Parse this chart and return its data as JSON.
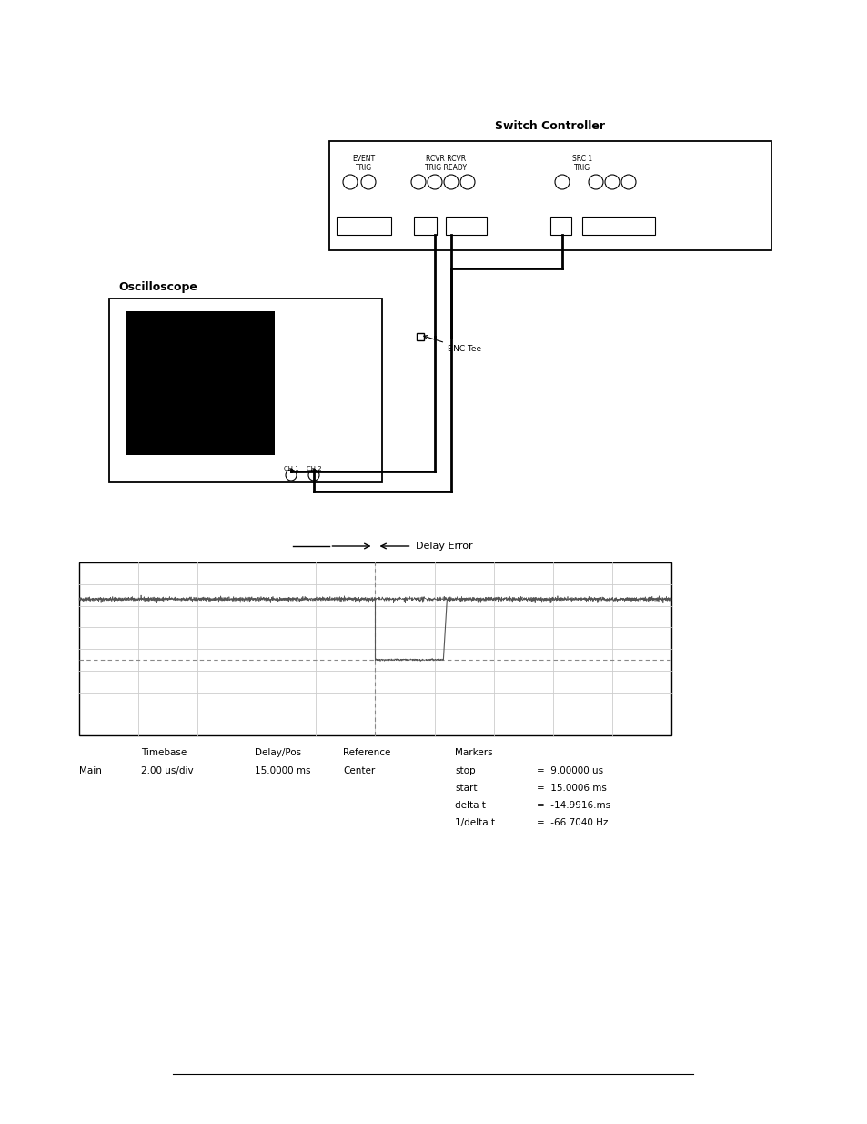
{
  "bg_color": "#ffffff",
  "line_color": "#000000",
  "gray_color": "#aaaaaa",
  "grid_color": "#cccccc",
  "sc_label": "Switch Controller",
  "sc_event_trig": "EVENT\nTRIG",
  "sc_rcvr": "RCVR RCVR\nTRIG READY",
  "sc_src1": "SRC 1\nTRIG",
  "osc_label": "Oscilloscope",
  "bnc_tee_label": "BNC Tee",
  "delay_error_label": "Delay Error",
  "bottom_main": "Main",
  "bottom_timebase_lbl": "Timebase",
  "bottom_timebase_val": "2.00 us/div",
  "bottom_delay_lbl": "Delay/Pos",
  "bottom_delay_val": "15.0000 ms",
  "bottom_ref_lbl": "Reference",
  "bottom_ref_val": "Center",
  "bottom_markers_lbl": "Markers",
  "markers": [
    [
      "stop",
      "=  9.00000 us"
    ],
    [
      "start",
      "=  15.0006 ms"
    ],
    [
      "delta t",
      "=  -14.9916.ms"
    ],
    [
      "1/delta t",
      "=  -66.7040 Hz"
    ]
  ]
}
